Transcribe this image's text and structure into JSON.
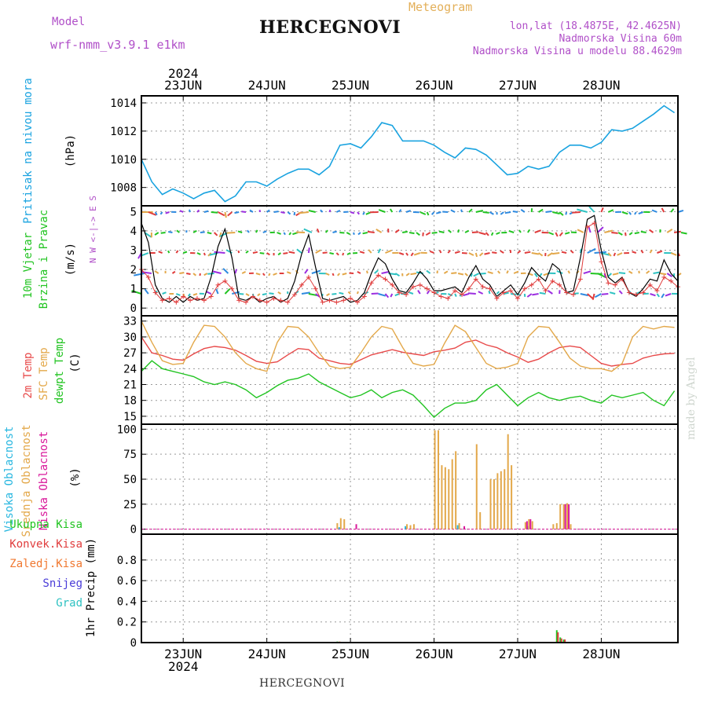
{
  "header": {
    "title": "HERCEGNOVI",
    "meteogram_label": "Meteogram",
    "model_label": "Model",
    "model_name": "wrf-nmm_v3.9.1 e1km",
    "lonlat": "lon,lat (18.4875E, 42.4625N)",
    "elevation": "Nadmorska Visina 60m",
    "model_elevation": "Nadmorska Visina u modelu 88.4629m",
    "watermark": "made by Angel",
    "footer_station": "HERCEGNOVI"
  },
  "time_axis": {
    "year": "2024",
    "day_labels": [
      "23JUN",
      "24JUN",
      "25JUN",
      "26JUN",
      "27JUN",
      "28JUN"
    ],
    "day_start_hours": [
      12,
      36,
      60,
      84,
      108,
      132
    ],
    "range_hours": [
      0,
      154
    ]
  },
  "colors": {
    "pressure": "#1aa3e0",
    "wind_speed": "#000000",
    "wind_gust": "#e03c3c",
    "temp_2m": "#e84a4a",
    "temp_sfc": "#e3a84a",
    "dewpoint": "#22c422",
    "cloud_high": "#29b7e0",
    "cloud_mid": "#e3a84a",
    "cloud_low": "#d9179a",
    "precip_total": "#22c422",
    "precip_conv": "#e03c3c",
    "precip_frz": "#f07830",
    "precip_snow": "#4a3cd8",
    "precip_grad": "#2ec2c2",
    "wind_label": "#b04fc8"
  },
  "chart_data": [
    {
      "type": "line",
      "name": "pressure",
      "ylabel_title": "Pritisak na nivou mora",
      "ylabel_unit": "(hPa)",
      "ylim": [
        1006.7,
        1014.5
      ],
      "yticks": [
        1008,
        1010,
        1012,
        1014
      ],
      "x": [
        0,
        3,
        6,
        9,
        12,
        15,
        18,
        21,
        24,
        27,
        30,
        33,
        36,
        39,
        42,
        45,
        48,
        51,
        54,
        57,
        60,
        63,
        66,
        69,
        72,
        75,
        78,
        81,
        84,
        87,
        90,
        93,
        96,
        99,
        102,
        105,
        108,
        111,
        114,
        117,
        120,
        123,
        126,
        129,
        132,
        135,
        138,
        141,
        144,
        147,
        150,
        153
      ],
      "values": [
        1010.0,
        1008.4,
        1007.5,
        1007.9,
        1007.6,
        1007.2,
        1007.6,
        1007.8,
        1007.0,
        1007.4,
        1008.4,
        1008.4,
        1008.1,
        1008.6,
        1009.0,
        1009.3,
        1009.3,
        1008.9,
        1009.5,
        1011.0,
        1011.1,
        1010.8,
        1011.6,
        1012.6,
        1012.4,
        1011.3,
        1011.3,
        1011.3,
        1011.0,
        1010.5,
        1010.1,
        1010.8,
        1010.7,
        1010.3,
        1009.6,
        1008.9,
        1009.0,
        1009.5,
        1009.3,
        1009.5,
        1010.5,
        1011.0,
        1011.0,
        1010.8,
        1011.2,
        1012.1,
        1012.0,
        1012.2,
        1012.7,
        1013.2,
        1013.8,
        1013.3
      ]
    },
    {
      "type": "line",
      "name": "wind",
      "ylabel_title": "10m Vjetar Brzina i Pravac",
      "ylabel_unit": "(m/s)",
      "compass": "N  W <-|-> E  S",
      "ylim": [
        -0.4,
        5.3
      ],
      "yticks": [
        0,
        1,
        2,
        3,
        4,
        5
      ],
      "x": [
        0,
        2,
        4,
        6,
        8,
        10,
        12,
        14,
        16,
        18,
        20,
        22,
        24,
        26,
        28,
        30,
        32,
        34,
        36,
        38,
        40,
        42,
        44,
        46,
        48,
        50,
        52,
        54,
        56,
        58,
        60,
        62,
        64,
        66,
        68,
        70,
        72,
        74,
        76,
        78,
        80,
        82,
        84,
        86,
        88,
        90,
        92,
        94,
        96,
        98,
        100,
        102,
        104,
        106,
        108,
        110,
        112,
        114,
        116,
        118,
        120,
        122,
        124,
        126,
        128,
        130,
        132,
        134,
        136,
        138,
        140,
        142,
        144,
        146,
        148,
        150,
        152,
        154
      ],
      "speed": [
        4.4,
        3.4,
        1.2,
        0.5,
        0.3,
        0.6,
        0.3,
        0.6,
        0.4,
        0.5,
        1.6,
        3.2,
        4.1,
        2.6,
        0.5,
        0.4,
        0.6,
        0.3,
        0.5,
        0.6,
        0.3,
        0.5,
        1.4,
        2.8,
        3.8,
        2.1,
        0.5,
        0.4,
        0.5,
        0.6,
        0.3,
        0.4,
        0.8,
        1.8,
        2.6,
        2.3,
        1.5,
        0.9,
        0.8,
        1.3,
        1.9,
        1.5,
        0.9,
        0.9,
        1.0,
        1.1,
        0.8,
        1.6,
        2.2,
        1.5,
        1.2,
        0.6,
        0.9,
        1.2,
        0.7,
        1.3,
        2.1,
        1.7,
        1.4,
        2.3,
        2.0,
        0.8,
        0.9,
        2.6,
        4.6,
        4.8,
        3.0,
        1.6,
        1.3,
        1.6,
        0.8,
        0.6,
        1.0,
        1.5,
        1.4,
        2.5,
        1.8,
        1.4
      ],
      "gust": [
        2.0,
        1.6,
        0.8,
        0.4,
        0.5,
        0.3,
        0.6,
        0.4,
        0.5,
        0.4,
        0.6,
        1.2,
        1.4,
        1.0,
        0.4,
        0.3,
        0.6,
        0.4,
        0.3,
        0.5,
        0.4,
        0.3,
        0.7,
        1.2,
        1.6,
        1.0,
        0.3,
        0.4,
        0.3,
        0.4,
        0.5,
        0.3,
        0.6,
        1.3,
        1.7,
        1.5,
        1.2,
        0.8,
        0.7,
        1.1,
        1.2,
        1.0,
        0.8,
        0.6,
        0.5,
        0.9,
        0.7,
        1.0,
        1.5,
        1.1,
        1.0,
        0.5,
        0.8,
        0.9,
        0.5,
        1.0,
        1.2,
        1.5,
        0.9,
        1.4,
        1.2,
        0.8,
        0.7,
        1.5,
        4.2,
        4.4,
        2.4,
        1.3,
        1.2,
        1.5,
        0.8,
        0.7,
        0.8,
        1.2,
        0.9,
        1.6,
        1.4,
        1.1
      ]
    },
    {
      "type": "line",
      "name": "temperature",
      "ylabel_series": [
        "2m Temp",
        "SFC Temp",
        "dewpt Temp"
      ],
      "ylabel_unit": "(C)",
      "ylim": [
        13.5,
        34
      ],
      "yticks": [
        15,
        18,
        21,
        24,
        27,
        30,
        33
      ],
      "x": [
        0,
        3,
        6,
        9,
        12,
        15,
        18,
        21,
        24,
        27,
        30,
        33,
        36,
        39,
        42,
        45,
        48,
        51,
        54,
        57,
        60,
        63,
        66,
        69,
        72,
        75,
        78,
        81,
        84,
        87,
        90,
        93,
        96,
        99,
        102,
        105,
        108,
        111,
        114,
        117,
        120,
        123,
        126,
        129,
        132,
        135,
        138,
        141,
        144,
        147,
        150,
        153
      ],
      "series": [
        {
          "name": "2m Temp",
          "values": [
            30.0,
            27.0,
            26.5,
            25.8,
            25.6,
            26.8,
            27.8,
            28.2,
            28.0,
            27.5,
            26.5,
            25.4,
            25.0,
            25.3,
            26.6,
            27.8,
            27.6,
            26.0,
            25.5,
            25.0,
            24.8,
            25.7,
            26.6,
            27.1,
            27.6,
            27.1,
            26.8,
            26.5,
            27.2,
            27.5,
            27.9,
            29.0,
            29.4,
            28.5,
            28.0,
            27.0,
            26.2,
            25.2,
            25.8,
            27.0,
            28.0,
            28.3,
            28.0,
            26.5,
            25.0,
            24.5,
            24.8,
            25.0,
            26.0,
            26.5,
            26.8,
            26.9
          ]
        },
        {
          "name": "SFC Temp",
          "values": [
            33.0,
            29.0,
            25.5,
            24.8,
            25.0,
            29.0,
            32.2,
            32.0,
            30.0,
            27.0,
            25.0,
            24.0,
            23.5,
            29.0,
            32.0,
            31.8,
            30.0,
            27.0,
            24.5,
            24.0,
            24.3,
            27.0,
            30.0,
            32.0,
            31.5,
            28.0,
            25.0,
            24.5,
            24.8,
            28.8,
            32.2,
            31.0,
            28.0,
            25.0,
            24.0,
            24.3,
            25.0,
            30.0,
            32.0,
            31.8,
            29.0,
            26.0,
            24.5,
            24.0,
            24.0,
            23.5,
            25.0,
            30.0,
            32.0,
            31.5,
            32.0,
            31.8
          ]
        },
        {
          "name": "dewpt Temp",
          "values": [
            23.5,
            25.5,
            24.0,
            23.5,
            23.0,
            22.5,
            21.5,
            21.0,
            21.5,
            21.0,
            20.0,
            18.5,
            19.5,
            20.8,
            21.8,
            22.2,
            23.0,
            21.5,
            20.5,
            19.5,
            18.5,
            19.0,
            20.0,
            18.5,
            19.5,
            20.0,
            19.0,
            17.0,
            14.8,
            16.5,
            17.5,
            17.5,
            18.0,
            20.0,
            21.0,
            19.0,
            17.0,
            18.5,
            19.5,
            18.5,
            18.0,
            18.5,
            18.8,
            18.0,
            17.5,
            19.0,
            18.5,
            19.0,
            19.5,
            18.0,
            17.0,
            19.8
          ]
        }
      ]
    },
    {
      "type": "bar",
      "name": "cloud_cover",
      "ylabel_series": [
        "Visoka Oblacnost",
        "Srednja Oblacnost",
        "Niska Oblacnost"
      ],
      "ylabel_unit": "(%)",
      "ylim": [
        -5,
        105
      ],
      "yticks": [
        0,
        25,
        50,
        75,
        100
      ],
      "series": [
        {
          "name": "Visoka Oblacnost",
          "x": [
            57,
            76,
            91,
            111
          ],
          "values": [
            2,
            3,
            4,
            3
          ]
        },
        {
          "name": "Srednja Oblacnost",
          "x": [
            56,
            57,
            58,
            76,
            77,
            78,
            84,
            85,
            86,
            87,
            88,
            89,
            90,
            91,
            96,
            97,
            100,
            101,
            102,
            103,
            104,
            105,
            106,
            110,
            111,
            112,
            118,
            119,
            120,
            121,
            122,
            123
          ],
          "values": [
            6,
            11,
            10,
            5,
            4,
            5,
            99,
            99,
            64,
            62,
            60,
            70,
            78,
            6,
            85,
            17,
            50,
            50,
            56,
            58,
            60,
            95,
            64,
            7,
            10,
            8,
            5,
            6,
            25,
            25,
            26,
            5
          ]
        },
        {
          "name": "Niska Oblacnost",
          "x": [
            61,
            92,
            110,
            111,
            121,
            122
          ],
          "values": [
            5,
            3,
            8,
            10,
            25,
            25
          ]
        }
      ]
    },
    {
      "type": "bar",
      "name": "precipitation",
      "ylabel_series": [
        "Ukupna Kisa",
        "Konvek.Kisa",
        "Zaledj.Kisa",
        "Snijeg",
        "Grad"
      ],
      "ylabel_unit": "1hr Precip (mm)",
      "ylim": [
        0,
        1.05
      ],
      "yticks": [
        0,
        0.2,
        0.4,
        0.6,
        0.8
      ],
      "x": [
        56,
        119,
        120,
        121
      ],
      "series": [
        {
          "name": "Ukupna Kisa",
          "values": [
            0.01,
            0.12,
            0.05,
            0.03
          ]
        },
        {
          "name": "Konvek.Kisa",
          "values": [
            0.0,
            0.1,
            0.04,
            0.03
          ]
        },
        {
          "name": "Zaledj.Kisa",
          "values": [
            0.01,
            0.0,
            0.0,
            0.0
          ]
        },
        {
          "name": "Snijeg",
          "values": [
            0.0,
            0.0,
            0.0,
            0.0
          ]
        },
        {
          "name": "Grad",
          "values": [
            0.0,
            0.0,
            0.0,
            0.0
          ]
        }
      ]
    }
  ]
}
